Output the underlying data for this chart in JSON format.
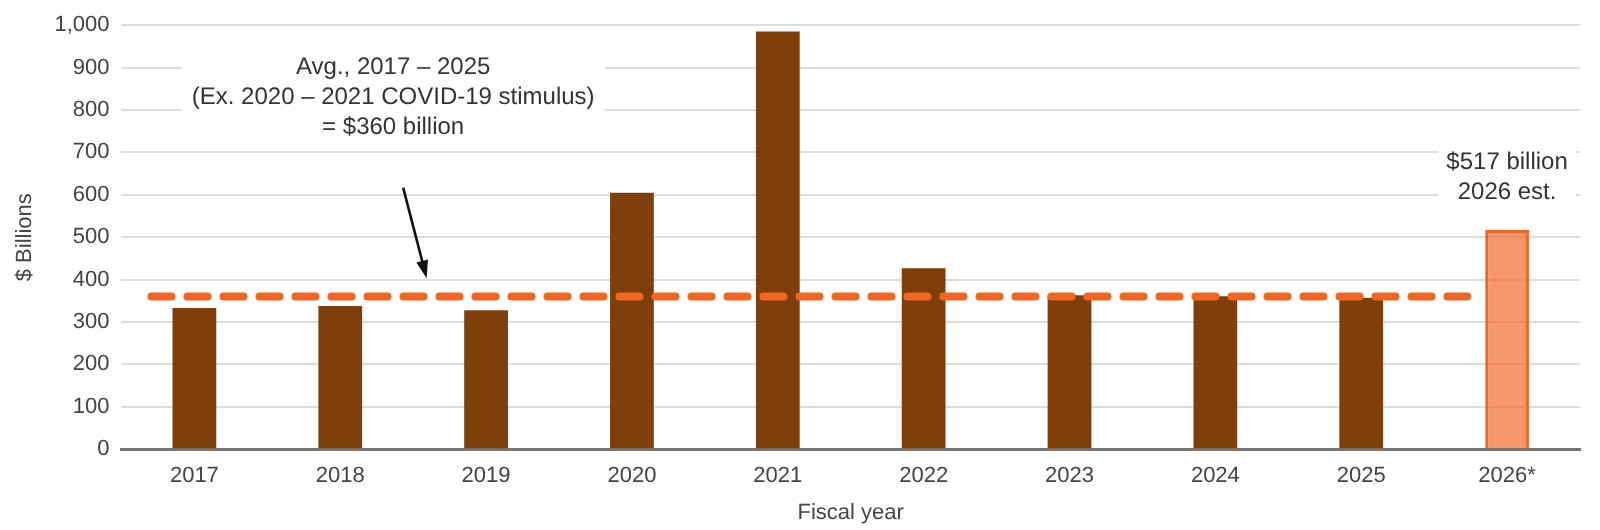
{
  "chart_data": {
    "type": "bar",
    "xlabel": "Fiscal year",
    "ylabel": "$ Billions",
    "categories": [
      "2017",
      "2018",
      "2019",
      "2020",
      "2021",
      "2022",
      "2023",
      "2024",
      "2025",
      "2026*"
    ],
    "values": [
      333,
      338,
      328,
      605,
      985,
      427,
      363,
      361,
      357,
      517
    ],
    "colors": [
      "#7f3f0a",
      "#7f3f0a",
      "#7f3f0a",
      "#7f3f0a",
      "#7f3f0a",
      "#7f3f0a",
      "#7f3f0a",
      "#7f3f0a",
      "#7f3f0a",
      "#f26522"
    ],
    "ylim": [
      0,
      1000
    ],
    "yticks": [
      0,
      100,
      200,
      300,
      400,
      500,
      600,
      700,
      800,
      900,
      {
        "value": 1000,
        "label": "1,000"
      }
    ],
    "grid": "y",
    "ref_lines": [
      {
        "axis": "y",
        "value": 360,
        "color": "#f26522",
        "line_style": "dashed"
      }
    ],
    "annotations": [
      "Avg., 2017 – 2025\n(Ex. 2020 – 2021 COVID-19 stimulus)\n= $360 billion",
      {
        "text": "$517 billion\n2026 est.",
        "x": "2026*",
        "y": 517
      }
    ]
  }
}
